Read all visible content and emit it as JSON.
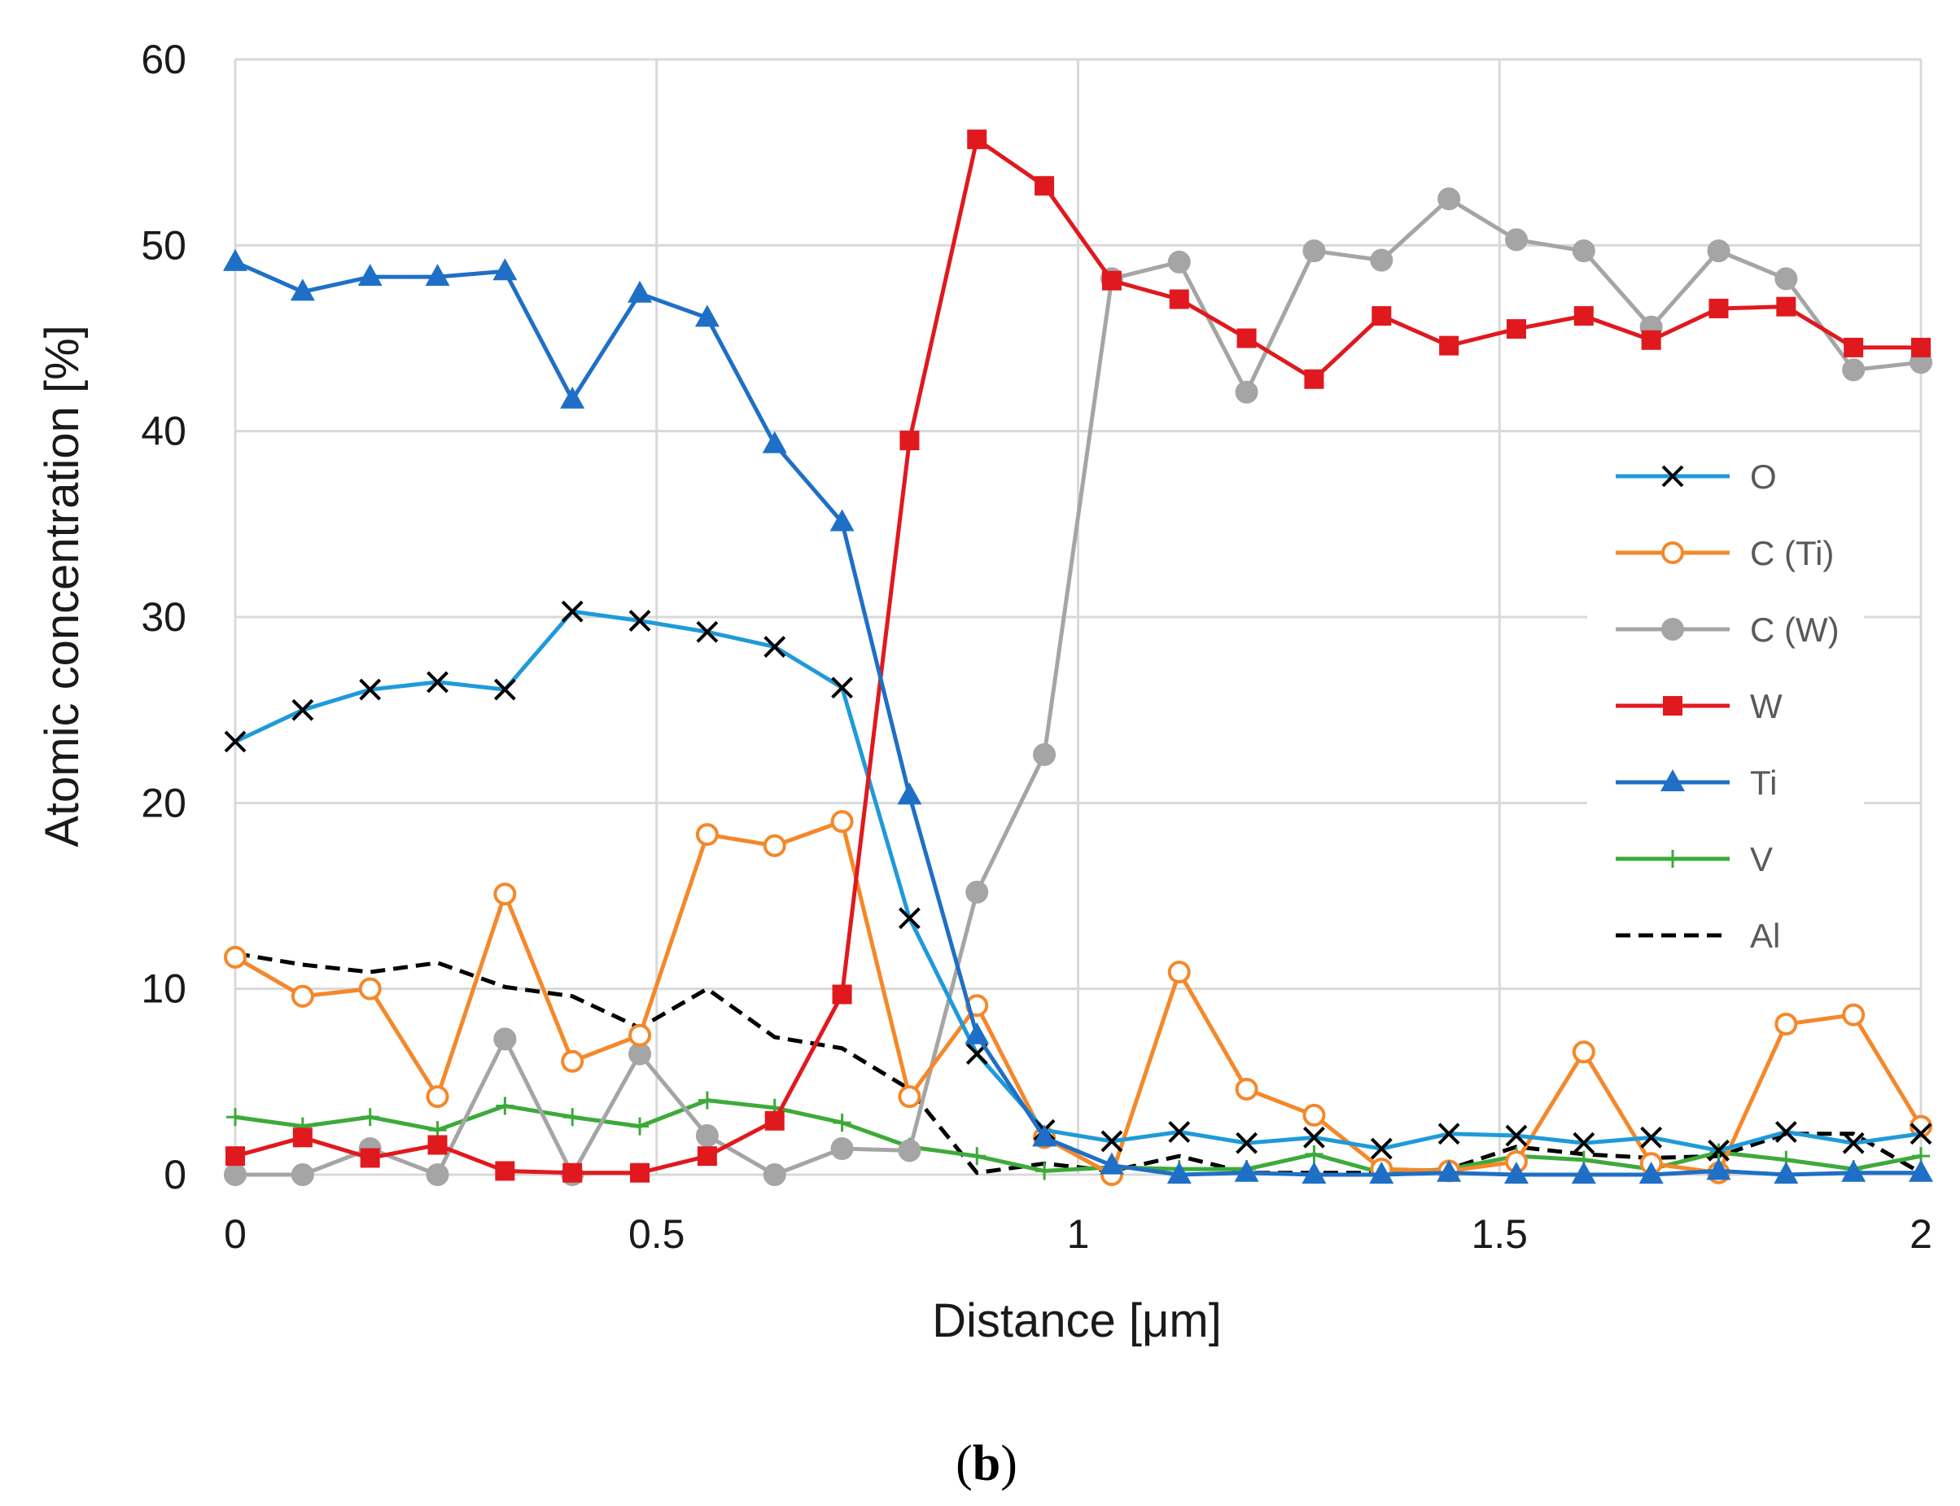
{
  "caption": {
    "open": "(",
    "letter": "b",
    "close": ")"
  },
  "chart_data": {
    "type": "line",
    "title": "",
    "xlabel": "Distance [μm]",
    "ylabel": "Atomic concentration [%]",
    "xlim": [
      0,
      2
    ],
    "ylim": [
      0,
      60
    ],
    "xticks": [
      0,
      0.5,
      1,
      1.5,
      2
    ],
    "xtick_labels": [
      "0",
      "0.5",
      "1",
      "1.5",
      "2"
    ],
    "yticks": [
      0,
      10,
      20,
      30,
      40,
      50,
      60
    ],
    "ytick_labels": [
      "0",
      "10",
      "20",
      "30",
      "40",
      "50",
      "60"
    ],
    "grid": true,
    "legend_position": "right",
    "x": [
      0,
      0.08,
      0.16,
      0.24,
      0.32,
      0.4,
      0.48,
      0.56,
      0.64,
      0.72,
      0.8,
      0.88,
      0.96,
      1.04,
      1.12,
      1.2,
      1.28,
      1.36,
      1.44,
      1.52,
      1.6,
      1.68,
      1.76,
      1.84,
      1.92,
      2.0
    ],
    "series": [
      {
        "name": "O",
        "color": "#1f9ad9",
        "marker": "x",
        "marker_color": "#000000",
        "dash": false,
        "values": [
          23.3,
          25.0,
          26.1,
          26.5,
          26.1,
          30.3,
          29.8,
          29.2,
          28.4,
          26.2,
          13.8,
          6.5,
          2.4,
          1.8,
          2.3,
          1.7,
          2.0,
          1.4,
          2.2,
          2.1,
          1.7,
          2.0,
          1.3,
          2.3,
          1.7,
          2.2
        ]
      },
      {
        "name": "C (Ti)",
        "color": "#f4882a",
        "marker": "circle-open",
        "marker_color": "#f4882a",
        "dash": false,
        "values": [
          11.7,
          9.6,
          10.0,
          4.2,
          15.1,
          6.1,
          7.5,
          18.3,
          17.7,
          19.0,
          4.2,
          9.1,
          2.0,
          0.0,
          10.9,
          4.6,
          3.2,
          0.3,
          0.2,
          0.7,
          6.6,
          0.6,
          0.1,
          8.1,
          8.6,
          2.6
        ]
      },
      {
        "name": "C (W)",
        "color": "#a5a5a5",
        "marker": "circle",
        "marker_color": "#a5a5a5",
        "dash": false,
        "values": [
          0.0,
          0.0,
          1.4,
          0.0,
          7.3,
          0.0,
          6.5,
          2.1,
          0.0,
          1.4,
          1.3,
          15.2,
          22.6,
          48.2,
          49.1,
          42.1,
          49.7,
          49.2,
          52.5,
          50.3,
          49.7,
          45.6,
          49.7,
          48.2,
          43.3,
          43.7
        ]
      },
      {
        "name": "W",
        "color": "#e0191e",
        "marker": "square",
        "marker_color": "#e0191e",
        "dash": false,
        "values": [
          1.0,
          2.0,
          0.9,
          1.6,
          0.2,
          0.1,
          0.1,
          1.0,
          2.9,
          9.7,
          39.5,
          55.7,
          53.2,
          48.1,
          47.1,
          45.0,
          42.8,
          46.2,
          44.6,
          45.5,
          46.2,
          44.9,
          46.6,
          46.7,
          44.5,
          44.5
        ]
      },
      {
        "name": "Ti",
        "color": "#1f6fc6",
        "marker": "triangle",
        "marker_color": "#1f6fc6",
        "dash": false,
        "values": [
          49.1,
          47.5,
          48.3,
          48.3,
          48.6,
          41.7,
          47.4,
          46.1,
          39.3,
          35.1,
          20.4,
          7.5,
          2.0,
          0.5,
          0.0,
          0.1,
          0.0,
          0.0,
          0.1,
          0.0,
          0.0,
          0.0,
          0.2,
          0.0,
          0.1,
          0.1
        ]
      },
      {
        "name": "V",
        "color": "#3daa3a",
        "marker": "plus",
        "marker_color": "#3daa3a",
        "dash": false,
        "values": [
          3.1,
          2.6,
          3.1,
          2.4,
          3.7,
          3.1,
          2.6,
          4.0,
          3.6,
          2.8,
          1.5,
          1.0,
          0.2,
          0.4,
          0.3,
          0.3,
          1.1,
          0.1,
          0.3,
          1.0,
          0.8,
          0.3,
          1.2,
          0.8,
          0.3,
          1.0
        ]
      },
      {
        "name": "Al",
        "color": "#000000",
        "marker": "none",
        "marker_color": "#000000",
        "dash": true,
        "values": [
          11.9,
          11.3,
          10.9,
          11.4,
          10.1,
          9.6,
          7.9,
          10.0,
          7.4,
          6.8,
          4.6,
          0.1,
          0.6,
          0.2,
          1.0,
          0.1,
          0.1,
          0.1,
          0.3,
          1.5,
          1.1,
          0.9,
          1.0,
          2.2,
          2.2,
          0.1
        ]
      }
    ]
  }
}
